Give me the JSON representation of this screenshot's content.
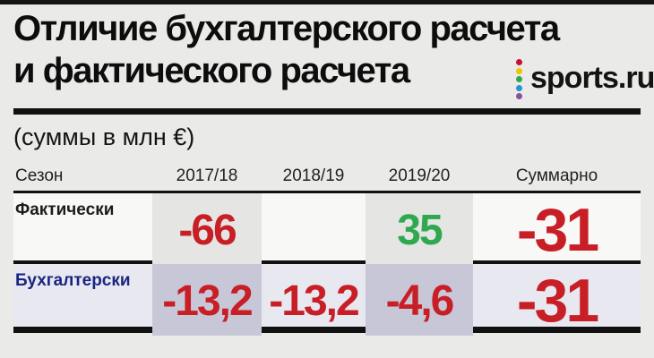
{
  "page": {
    "title_line1": "Отличие бухгалтерского расчета",
    "title_line2": "и фактического расчета",
    "units_note": "(суммы в млн €)"
  },
  "logo": {
    "text": "sports.ru",
    "dot_colors": [
      "#c8102e",
      "#f0c400",
      "#2fa84f",
      "#2196d3",
      "#8a4f9e"
    ]
  },
  "colors": {
    "negative": "#c81e25",
    "positive": "#2fa84f",
    "accounting": "#1a2580",
    "row1_bg": "#f8f8f6",
    "row2_bg": "#e8e8f1",
    "highlight_row1_cell": "#e5e5e3",
    "highlight_row2_cell": "#c7c7d8",
    "background": "#eaeae8"
  },
  "table": {
    "headers": [
      "Сезон",
      "2017/18",
      "2018/19",
      "2019/20",
      "Суммарно"
    ],
    "rows": [
      {
        "label": "Фактически",
        "values": [
          "-66",
          "",
          "35",
          "-31"
        ]
      },
      {
        "label": "Бухгалтерски",
        "values": [
          "-13,2",
          "-13,2",
          "-4,6",
          "-31"
        ]
      }
    ]
  },
  "chart_data": {
    "type": "table",
    "title": "Отличие бухгалтерского расчета и фактического расчета",
    "units": "млн €",
    "columns": [
      "Сезон",
      "2017/18",
      "2018/19",
      "2019/20",
      "Суммарно"
    ],
    "rows": [
      {
        "label": "Фактически",
        "values": [
          -66,
          null,
          35,
          -31
        ]
      },
      {
        "label": "Бухгалтерски",
        "values": [
          -13.2,
          -13.2,
          -4.6,
          -31
        ]
      }
    ],
    "value_colors": {
      "negative": "#c81e25",
      "positive": "#2fa84f"
    }
  }
}
